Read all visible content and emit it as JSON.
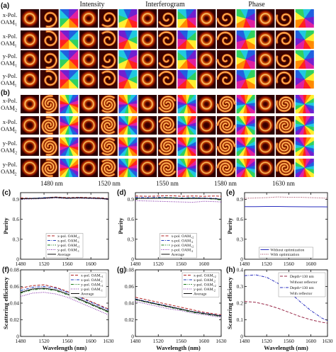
{
  "top": {
    "panel_a_letter": "(a)",
    "panel_b_letter": "(b)",
    "headers": [
      "Intensity",
      "Interferogram",
      "Phase"
    ],
    "rows_a": [
      {
        "l1": "x-Pol.",
        "l2": "OAM",
        "sub": "+1",
        "type": "donut",
        "ell": 1,
        "arms": 1,
        "cw": true
      },
      {
        "l1": "x-Pol.",
        "l2": "OAM",
        "sub": "-1",
        "type": "donut",
        "ell": -1,
        "arms": 1,
        "cw": false
      },
      {
        "l1": "y-Pol.",
        "l2": "OAM",
        "sub": "+1",
        "type": "donut",
        "ell": 1,
        "arms": 1,
        "cw": true
      },
      {
        "l1": "y-Pol.",
        "l2": "OAM",
        "sub": "-1",
        "type": "donut",
        "ell": -1,
        "arms": 1,
        "cw": false
      }
    ],
    "rows_b": [
      {
        "l1": "x-Pol.",
        "l2": "OAM",
        "sub": "+2",
        "type": "donut",
        "ell": 2,
        "arms": 2,
        "cw": true
      },
      {
        "l1": "x-Pol.",
        "l2": "OAM",
        "sub": "-2",
        "type": "ring",
        "ell": -2,
        "arms": 2,
        "cw": false
      },
      {
        "l1": "y-Pol.",
        "l2": "OAM",
        "sub": "+2",
        "type": "ring",
        "ell": 2,
        "arms": 2,
        "cw": true
      },
      {
        "l1": "y-Pol.",
        "l2": "OAM",
        "sub": "-2",
        "type": "ring",
        "ell": -2,
        "arms": 2,
        "cw": false
      }
    ],
    "wavelength_labels": [
      "1480 nm",
      "1520 nm",
      "1550 nm",
      "1580 nm",
      "1630 nm"
    ]
  },
  "chart_data": [
    {
      "panel": "(c)",
      "type": "line",
      "xlabel": "",
      "ylabel": "Purity",
      "xlim": [
        1480,
        1630
      ],
      "ylim": [
        0,
        1.0
      ],
      "xticks": [
        1480,
        1520,
        1560,
        1600
      ],
      "xticklabels": [
        "1480",
        "1520",
        "1560",
        "1600"
      ],
      "yticks": [
        0,
        0.3,
        0.6,
        0.9
      ],
      "yticklabels": [
        "0",
        "0.3",
        "0.6",
        "0.9"
      ],
      "legend": "bottom-center",
      "x": [
        1480,
        1500,
        1520,
        1540,
        1560,
        1580,
        1600,
        1620,
        1630
      ],
      "series": [
        {
          "name": "x-pol. OAM",
          "sub": "+1",
          "style": "dash",
          "color": "#b22222",
          "values": [
            0.92,
            0.915,
            0.92,
            0.935,
            0.925,
            0.93,
            0.925,
            0.92,
            0.91
          ]
        },
        {
          "name": "x-pol. OAM",
          "sub": "-1",
          "style": "dashdot",
          "color": "#1f3fbf",
          "values": [
            0.91,
            0.915,
            0.925,
            0.93,
            0.92,
            0.925,
            0.92,
            0.915,
            0.905
          ]
        },
        {
          "name": "y-pol. OAM",
          "sub": "+1",
          "style": "dashdotdot",
          "color": "#1a7a1a",
          "values": [
            0.905,
            0.91,
            0.915,
            0.925,
            0.915,
            0.92,
            0.915,
            0.91,
            0.9
          ]
        },
        {
          "name": "y-pol. OAM",
          "sub": "-1",
          "style": "dot",
          "color": "#7a1fa2",
          "values": [
            0.9,
            0.905,
            0.91,
            0.92,
            0.91,
            0.915,
            0.91,
            0.905,
            0.895
          ]
        },
        {
          "name": "Average",
          "sub": "",
          "style": "solid",
          "color": "#111111",
          "values": [
            0.91,
            0.912,
            0.918,
            0.928,
            0.918,
            0.922,
            0.918,
            0.912,
            0.902
          ]
        }
      ]
    },
    {
      "panel": "(d)",
      "type": "line",
      "xlabel": "",
      "ylabel": "Purity",
      "xlim": [
        1480,
        1630
      ],
      "ylim": [
        0,
        1.0
      ],
      "xticks": [
        1480,
        1520,
        1560,
        1600
      ],
      "xticklabels": [
        "1480",
        "1520",
        "1560",
        "1600"
      ],
      "yticks": [
        0,
        0.3,
        0.6,
        0.9
      ],
      "yticklabels": [
        "0",
        "0.3",
        "0.6",
        "0.9"
      ],
      "legend": "bottom-center",
      "x": [
        1480,
        1500,
        1520,
        1540,
        1560,
        1580,
        1600,
        1620,
        1630
      ],
      "series": [
        {
          "name": "x-pol. OAM",
          "sub": "+2",
          "style": "dash",
          "color": "#b22222",
          "values": [
            0.95,
            0.945,
            0.95,
            0.955,
            0.945,
            0.95,
            0.945,
            0.95,
            0.945
          ]
        },
        {
          "name": "x-pol. OAM",
          "sub": "-2",
          "style": "dashdot",
          "color": "#1f3fbf",
          "values": [
            0.93,
            0.925,
            0.93,
            0.925,
            0.92,
            0.925,
            0.92,
            0.915,
            0.905
          ]
        },
        {
          "name": "y-pol. OAM",
          "sub": "+2",
          "style": "dashdotdot",
          "color": "#1a7a1a",
          "values": [
            0.91,
            0.915,
            0.92,
            0.925,
            0.915,
            0.92,
            0.915,
            0.9,
            0.89
          ]
        },
        {
          "name": "y-pol. OAM",
          "sub": "-2",
          "style": "dot",
          "color": "#7a1fa2",
          "values": [
            0.88,
            0.875,
            0.87,
            0.865,
            0.86,
            0.855,
            0.87,
            0.865,
            0.86
          ]
        },
        {
          "name": "Average",
          "sub": "",
          "style": "solid",
          "color": "#111111",
          "values": [
            0.915,
            0.913,
            0.915,
            0.918,
            0.91,
            0.912,
            0.913,
            0.908,
            0.9
          ]
        }
      ]
    },
    {
      "panel": "(e)",
      "type": "line",
      "xlabel": "",
      "ylabel": "Purity",
      "xlim": [
        1480,
        1630
      ],
      "ylim": [
        0,
        1.0
      ],
      "xticks": [
        1480,
        1520,
        1560,
        1600
      ],
      "xticklabels": [
        "1480",
        "1520",
        "1560",
        "1600"
      ],
      "yticks": [
        0,
        0.3,
        0.6,
        0.9
      ],
      "yticklabels": [
        "0",
        "0.3",
        "0.6",
        "0.9"
      ],
      "legend": "bottom-center",
      "x": [
        1480,
        1500,
        1520,
        1540,
        1560,
        1580,
        1600,
        1620,
        1630
      ],
      "series": [
        {
          "name": "Without optimization",
          "sub": "",
          "style": "solid",
          "color": "#2a2fbf",
          "values": [
            0.79,
            0.79,
            0.792,
            0.792,
            0.79,
            0.788,
            0.787,
            0.787,
            0.786
          ]
        },
        {
          "name": "With optimization",
          "sub": "",
          "style": "dot",
          "color": "#9a2a4a",
          "values": [
            0.915,
            0.92,
            0.925,
            0.935,
            0.93,
            0.93,
            0.925,
            0.92,
            0.915
          ]
        }
      ]
    },
    {
      "panel": "(f)",
      "type": "line",
      "xlabel": "Wavelength (nm)",
      "ylabel": "Scattering efficiency",
      "xlim": [
        1480,
        1630
      ],
      "ylim": [
        0,
        0.08
      ],
      "xticks": [
        1480,
        1520,
        1560,
        1600,
        1630
      ],
      "xticklabels": [
        "1480",
        "1520",
        "1560",
        "1600",
        "1630"
      ],
      "yticks": [
        0,
        0.02,
        0.04,
        0.06,
        0.08
      ],
      "yticklabels": [
        "0",
        "0.02",
        "0.04",
        "0.06",
        "0.08"
      ],
      "legend": "top-right",
      "x": [
        1480,
        1500,
        1520,
        1540,
        1560,
        1580,
        1600,
        1620,
        1630
      ],
      "series": [
        {
          "name": "x-pol. OAM",
          "sub": "+1",
          "style": "dash",
          "color": "#b22222",
          "values": [
            0.058,
            0.061,
            0.062,
            0.059,
            0.054,
            0.048,
            0.042,
            0.036,
            0.033
          ]
        },
        {
          "name": "x-pol. OAM",
          "sub": "-1",
          "style": "dashdot",
          "color": "#1f3fbf",
          "values": [
            0.055,
            0.059,
            0.06,
            0.058,
            0.053,
            0.047,
            0.041,
            0.035,
            0.032
          ]
        },
        {
          "name": "y-pol. OAM",
          "sub": "+1",
          "style": "dashdotdot",
          "color": "#1a7a1a",
          "values": [
            0.052,
            0.056,
            0.057,
            0.055,
            0.05,
            0.044,
            0.038,
            0.032,
            0.029
          ]
        },
        {
          "name": "y-pol. OAM",
          "sub": "-1",
          "style": "dot",
          "color": "#7a1fa2",
          "values": [
            0.048,
            0.052,
            0.053,
            0.051,
            0.047,
            0.041,
            0.035,
            0.029,
            0.026
          ]
        },
        {
          "name": "Average",
          "sub": "",
          "style": "solid",
          "color": "#111111",
          "values": [
            0.053,
            0.057,
            0.058,
            0.056,
            0.051,
            0.045,
            0.039,
            0.033,
            0.03
          ]
        }
      ]
    },
    {
      "panel": "(g)",
      "type": "line",
      "xlabel": "Wavelength (nm)",
      "ylabel": "",
      "xlim": [
        1480,
        1630
      ],
      "ylim": [
        0,
        0.08
      ],
      "xticks": [
        1480,
        1520,
        1560,
        1600,
        1630
      ],
      "xticklabels": [
        "1480",
        "1520",
        "1560",
        "1600",
        "1630"
      ],
      "yticks": [
        0,
        0.02,
        0.04,
        0.06,
        0.08
      ],
      "yticklabels": [
        "0",
        "0.02",
        "0.04",
        "0.06",
        "0.08"
      ],
      "legend": "top-right",
      "x": [
        1480,
        1500,
        1520,
        1540,
        1560,
        1580,
        1600,
        1620,
        1630
      ],
      "series": [
        {
          "name": "x-pol. OAM",
          "sub": "+2",
          "style": "dash",
          "color": "#b22222",
          "values": [
            0.047,
            0.044,
            0.041,
            0.038,
            0.035,
            0.032,
            0.029,
            0.027,
            0.026
          ]
        },
        {
          "name": "x-pol. OAM",
          "sub": "-2",
          "style": "dashdot",
          "color": "#1f3fbf",
          "values": [
            0.045,
            0.042,
            0.039,
            0.036,
            0.033,
            0.03,
            0.028,
            0.026,
            0.025
          ]
        },
        {
          "name": "y-pol. OAM",
          "sub": "+2",
          "style": "dashdotdot",
          "color": "#1a7a1a",
          "values": [
            0.044,
            0.041,
            0.038,
            0.035,
            0.032,
            0.029,
            0.027,
            0.025,
            0.024
          ]
        },
        {
          "name": "y-pol. OAM",
          "sub": "-2",
          "style": "dot",
          "color": "#7a1fa2",
          "values": [
            0.042,
            0.039,
            0.036,
            0.033,
            0.031,
            0.028,
            0.026,
            0.024,
            0.023
          ]
        },
        {
          "name": "Average",
          "sub": "",
          "style": "solid",
          "color": "#111111",
          "values": [
            0.0445,
            0.0415,
            0.0385,
            0.0355,
            0.0328,
            0.0298,
            0.0275,
            0.0255,
            0.0245
          ]
        }
      ]
    },
    {
      "panel": "(h)",
      "type": "line",
      "xlabel": "Wavelength (nm)",
      "ylabel": "Scattering efficiency",
      "xlim": [
        1480,
        1630
      ],
      "ylim": [
        0,
        0.4
      ],
      "xticks": [
        1480,
        1520,
        1560,
        1600,
        1630
      ],
      "xticklabels": [
        "1480",
        "1520",
        "1560",
        "1600",
        "1630"
      ],
      "yticks": [
        0,
        0.1,
        0.2,
        0.3,
        0.4
      ],
      "yticklabels": [
        "0",
        "0.1",
        "0.2",
        "0.3",
        "0.4"
      ],
      "legend": "top-right",
      "x": [
        1480,
        1500,
        1520,
        1540,
        1560,
        1580,
        1600,
        1620,
        1630
      ],
      "series": [
        {
          "name": "Depth=130 nm",
          "name2": "Without reflector",
          "sub": "",
          "style": "dash",
          "color": "#9a2a4a",
          "values": [
            0.21,
            0.205,
            0.19,
            0.17,
            0.145,
            0.12,
            0.1,
            0.085,
            0.08
          ]
        },
        {
          "name": "Depth=130 nm",
          "name2": "With reflector",
          "sub": "",
          "style": "dashdot",
          "color": "#2a2fbf",
          "values": [
            0.365,
            0.37,
            0.355,
            0.32,
            0.27,
            0.21,
            0.155,
            0.11,
            0.095
          ]
        }
      ]
    }
  ]
}
